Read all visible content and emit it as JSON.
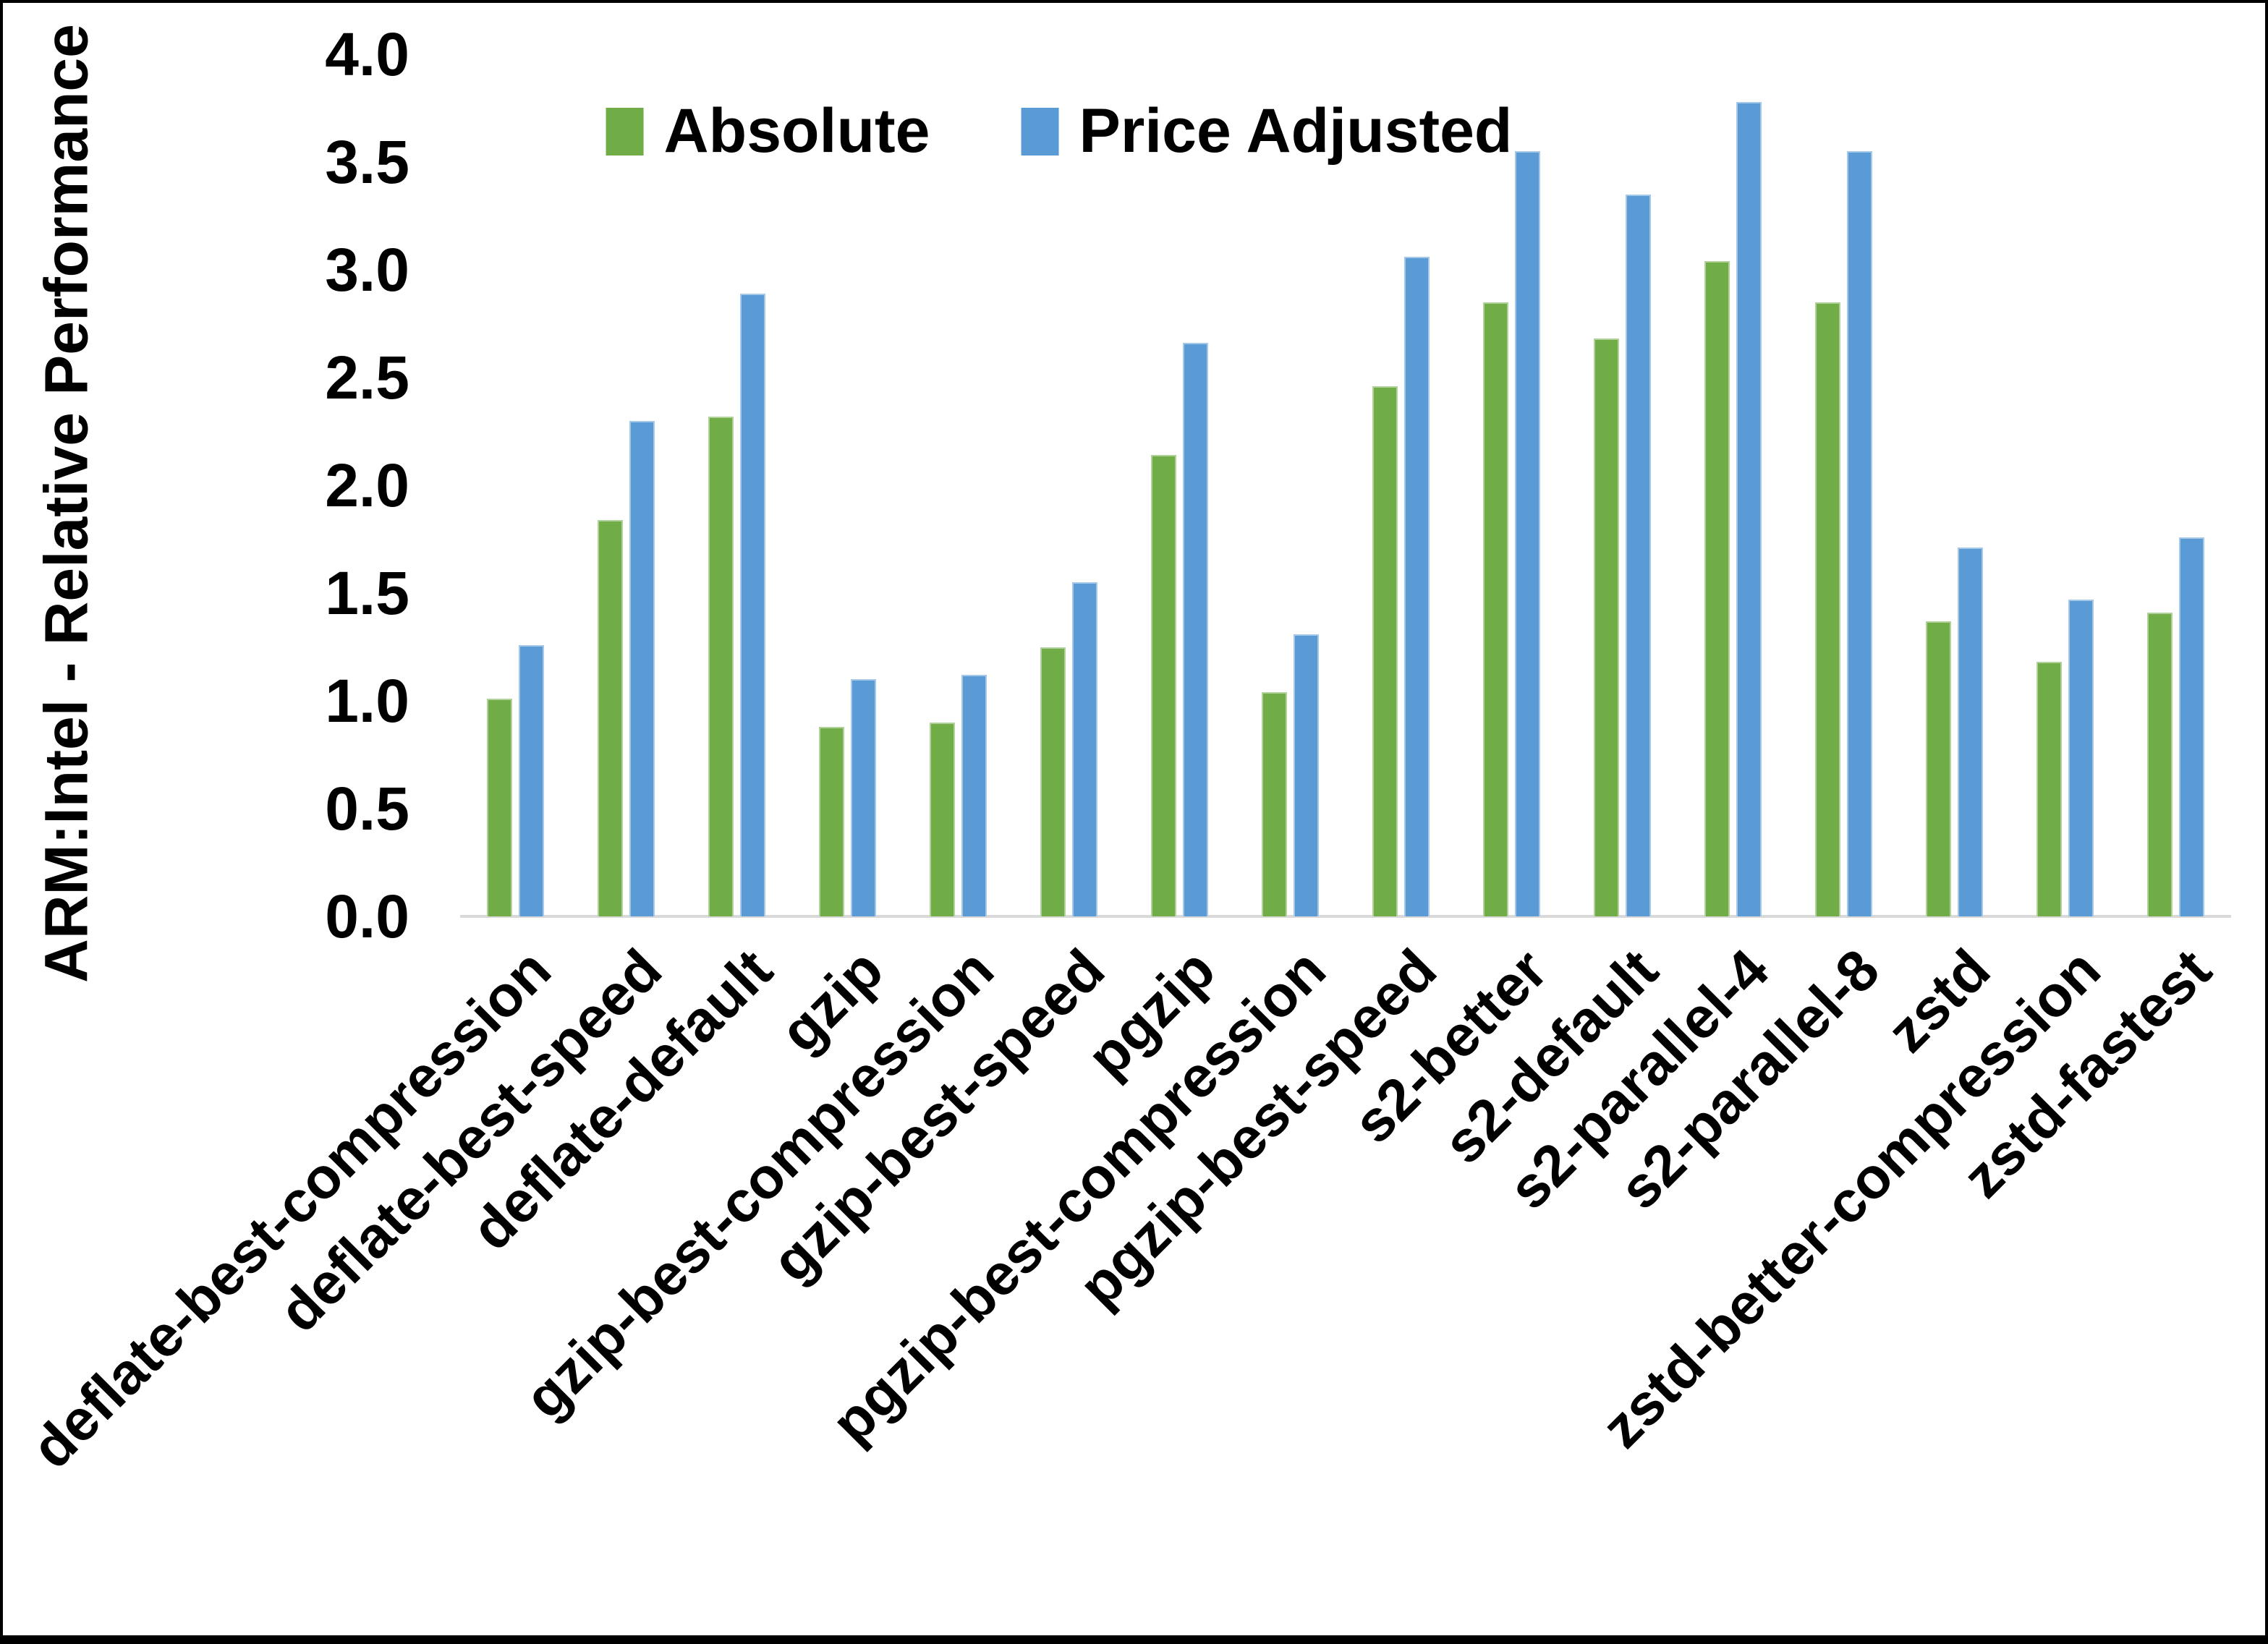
{
  "figure": {
    "y_axis_title": "ARM:Intel - Relative Performance"
  },
  "legend": {
    "items": [
      {
        "label": "Absolute",
        "color": "#70AD47"
      },
      {
        "label": "Price Adjusted",
        "color": "#5B9BD5"
      }
    ]
  },
  "chart_data": {
    "type": "bar",
    "title": "",
    "xlabel": "",
    "ylabel": "ARM:Intel - Relative Performance",
    "ylim": [
      0.0,
      4.0
    ],
    "ytick_step": 0.5,
    "yticks": [
      "4.0",
      "3.5",
      "3.0",
      "2.5",
      "2.0",
      "1.5",
      "1.0",
      "0.5",
      "0.0"
    ],
    "grid": false,
    "legend_position": "top-center",
    "x_label_rotation_deg": 45,
    "axis_line_color": "#D9D9D9",
    "categories": [
      "deflate-best-compression",
      "deflate-best-speed",
      "deflate-default",
      "gzip",
      "gzip-best-compression",
      "gzip-best-speed",
      "pgzip",
      "pgzip-best-compression",
      "pgzip-best-speed",
      "s2-better",
      "s2-default",
      "s2-parallel-4",
      "s2-parallel-8",
      "zstd",
      "zstd-better-compression",
      "zstd-fastest"
    ],
    "series": [
      {
        "name": "Absolute",
        "color": "#70AD47",
        "values": [
          1.01,
          1.84,
          2.32,
          0.88,
          0.9,
          1.25,
          2.14,
          1.04,
          2.46,
          2.85,
          2.68,
          3.04,
          2.85,
          1.37,
          1.18,
          1.41
        ]
      },
      {
        "name": "Price Adjusted",
        "color": "#5B9BD5",
        "values": [
          1.26,
          2.3,
          2.89,
          1.1,
          1.12,
          1.55,
          2.66,
          1.31,
          3.06,
          3.55,
          3.35,
          3.78,
          3.55,
          1.71,
          1.47,
          1.76
        ]
      }
    ]
  }
}
